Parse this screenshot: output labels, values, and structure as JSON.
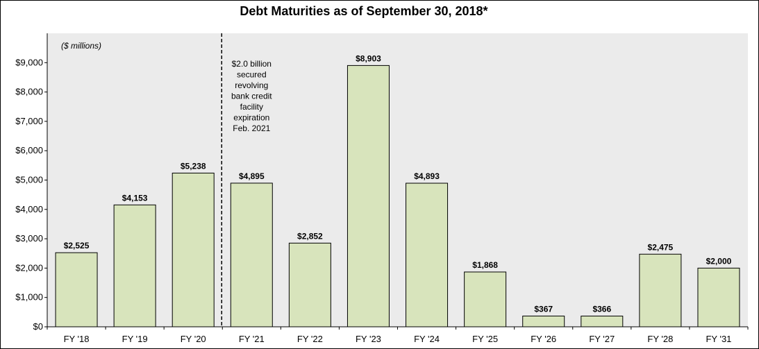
{
  "chart_data": {
    "type": "bar",
    "title": "Debt Maturities as of September 30, 2018*",
    "units_label": "($ millions)",
    "categories": [
      "FY '18",
      "FY '19",
      "FY '20",
      "FY '21",
      "FY '22",
      "FY '23",
      "FY '24",
      "FY '25",
      "FY '26",
      "FY '27",
      "FY '28",
      "FY '31"
    ],
    "values": [
      2525,
      4153,
      5238,
      4895,
      2852,
      8903,
      4893,
      1868,
      367,
      366,
      2475,
      2000
    ],
    "data_labels": [
      "$2,525",
      "$4,153",
      "$5,238",
      "$4,895",
      "$2,852",
      "$8,903",
      "$4,893",
      "$1,868",
      "$367",
      "$366",
      "$2,475",
      "$2,000"
    ],
    "ylim": [
      0,
      10000
    ],
    "yticks": [
      0,
      1000,
      2000,
      3000,
      4000,
      5000,
      6000,
      7000,
      8000,
      9000
    ],
    "ytick_labels": [
      "$0",
      "$1,000",
      "$2,000",
      "$3,000",
      "$4,000",
      "$5,000",
      "$6,000",
      "$7,000",
      "$8,000",
      "$9,000"
    ],
    "xlabel": "",
    "ylabel": "",
    "grid": false,
    "bar_color": "#d8e4bc",
    "plot_background": "#ebebeb",
    "annotation": {
      "lines": [
        "$2.0 billion",
        "secured",
        "revolving",
        "bank credit",
        "facility",
        "expiration",
        "Feb. 2021"
      ],
      "divider_between": [
        "FY '20",
        "FY '21"
      ]
    }
  }
}
